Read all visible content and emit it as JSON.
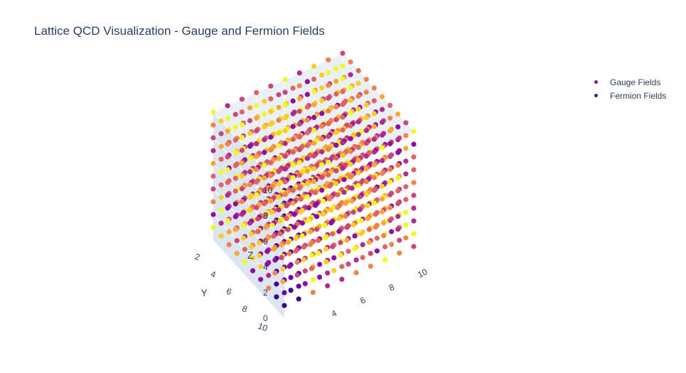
{
  "title": "Lattice QCD Visualization - Gauge and Fermion Fields",
  "chart_data": {
    "type": "scatter3d",
    "title": "Lattice QCD Visualization - Gauge and Fermion Fields",
    "axes": {
      "x": {
        "label": "",
        "ticks": [
          "4",
          "6",
          "8",
          "10"
        ],
        "range": [
          1,
          10
        ]
      },
      "y": {
        "label": "Y",
        "ticks": [
          "2",
          "4",
          "6",
          "8",
          "10"
        ],
        "range": [
          1,
          10
        ]
      },
      "z": {
        "label": "Z",
        "ticks": [
          "0",
          "2",
          "4",
          "6",
          "8",
          "10"
        ],
        "range": [
          0,
          10
        ]
      }
    },
    "lattice": {
      "x_points": [
        1,
        2,
        3,
        4,
        5,
        6,
        7,
        8,
        9,
        10
      ],
      "y_points": [
        1,
        2,
        3,
        4,
        5,
        6,
        7,
        8,
        9,
        10
      ],
      "z_points": [
        1,
        2,
        3,
        4,
        5,
        6,
        7,
        8,
        9,
        10
      ]
    },
    "series": [
      {
        "name": "Gauge Fields",
        "color": "#7b1a8f",
        "colorscale": "plasma",
        "marker": "circle"
      },
      {
        "name": "Fermion Fields",
        "color": "#3a1e9a",
        "colorscale": "plasma",
        "marker": "circle"
      }
    ],
    "legend_position": "top-right",
    "grid": true
  }
}
